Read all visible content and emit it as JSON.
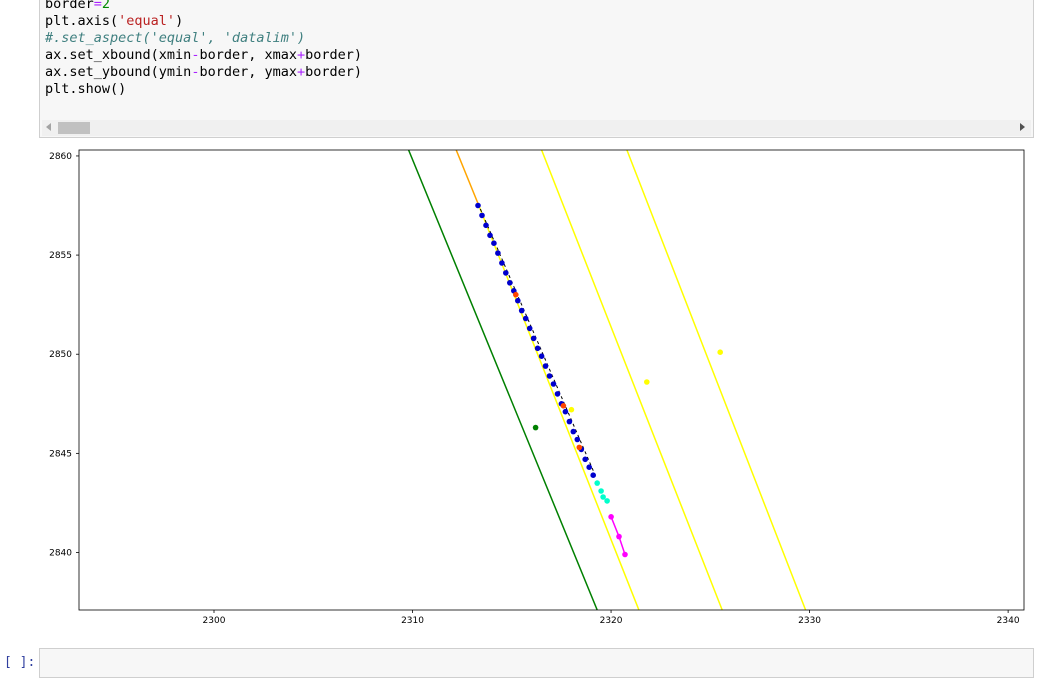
{
  "code_cell": {
    "lines": [
      [
        {
          "t": "border"
        },
        {
          "t": "=",
          "c": "op"
        },
        {
          "t": "2",
          "c": "num"
        }
      ],
      [
        {
          "t": "plt.axis("
        },
        {
          "t": "'equal'",
          "c": "str"
        },
        {
          "t": ")"
        }
      ],
      [
        {
          "t": "#.set_aspect('equal', 'datalim')",
          "c": "com"
        }
      ],
      [
        {
          "t": "ax.set_xbound(xmin"
        },
        {
          "t": "-",
          "c": "op"
        },
        {
          "t": "border, xmax"
        },
        {
          "t": "+",
          "c": "op"
        },
        {
          "t": "border)"
        }
      ],
      [
        {
          "t": "ax.set_ybound(ymin"
        },
        {
          "t": "-",
          "c": "op"
        },
        {
          "t": "border, ymax"
        },
        {
          "t": "+",
          "c": "op"
        },
        {
          "t": "border)"
        }
      ],
      [
        {
          "t": "plt.show()"
        }
      ]
    ]
  },
  "input_prompt": "[ ]:",
  "chart_data": {
    "type": "line",
    "xlim": [
      2293.2,
      2340.8
    ],
    "ylim": [
      2837.1,
      2860.3
    ],
    "xticks": [
      2300,
      2310,
      2320,
      2330,
      2340
    ],
    "yticks": [
      2840,
      2845,
      2850,
      2855,
      2860
    ],
    "grid": false,
    "series": [
      {
        "color": "#008000",
        "kind": "line",
        "points": [
          [
            2309.8,
            2860.3
          ],
          [
            2319.3,
            2837.1
          ]
        ]
      },
      {
        "color": "#008000",
        "kind": "points",
        "points": [
          [
            2316.2,
            2846.3
          ]
        ]
      },
      {
        "color": "#ffa500",
        "kind": "line",
        "points": [
          [
            2312.2,
            2860.3
          ],
          [
            2313.3,
            2857.6
          ]
        ]
      },
      {
        "color": "#ffff00",
        "kind": "line",
        "points": [
          [
            2313.3,
            2857.6
          ],
          [
            2321.4,
            2837.1
          ]
        ]
      },
      {
        "color": "#ffff00",
        "kind": "line",
        "points": [
          [
            2316.5,
            2860.3
          ],
          [
            2325.6,
            2837.1
          ]
        ]
      },
      {
        "color": "#ffff00",
        "kind": "line",
        "points": [
          [
            2320.8,
            2860.3
          ],
          [
            2329.8,
            2837.1
          ]
        ]
      },
      {
        "color": "#ffff00",
        "kind": "points",
        "points": [
          [
            2321.8,
            2848.6
          ],
          [
            2325.5,
            2850.1
          ],
          [
            2318.0,
            2847.2
          ]
        ]
      },
      {
        "color": "#000000",
        "kind": "line",
        "dashed": true,
        "points": [
          [
            2313.3,
            2857.6
          ],
          [
            2319.2,
            2843.9
          ]
        ]
      },
      {
        "color": "#0000cd",
        "kind": "points",
        "points": [
          [
            2313.3,
            2857.5
          ],
          [
            2313.5,
            2857.0
          ],
          [
            2313.7,
            2856.5
          ],
          [
            2313.9,
            2856.0
          ],
          [
            2314.1,
            2855.6
          ],
          [
            2314.3,
            2855.1
          ],
          [
            2314.5,
            2854.6
          ],
          [
            2314.7,
            2854.1
          ],
          [
            2314.9,
            2853.6
          ],
          [
            2315.1,
            2853.2
          ],
          [
            2315.3,
            2852.7
          ],
          [
            2315.5,
            2852.2
          ],
          [
            2315.7,
            2851.8
          ],
          [
            2315.9,
            2851.3
          ],
          [
            2316.1,
            2850.8
          ],
          [
            2316.3,
            2850.3
          ],
          [
            2316.5,
            2849.9
          ],
          [
            2316.7,
            2849.4
          ],
          [
            2316.9,
            2848.9
          ],
          [
            2317.1,
            2848.5
          ],
          [
            2317.3,
            2848.0
          ],
          [
            2317.5,
            2847.5
          ],
          [
            2317.7,
            2847.1
          ],
          [
            2317.9,
            2846.6
          ],
          [
            2318.1,
            2846.1
          ],
          [
            2318.3,
            2845.7
          ],
          [
            2318.5,
            2845.2
          ],
          [
            2318.7,
            2844.7
          ],
          [
            2318.9,
            2844.3
          ],
          [
            2319.1,
            2843.9
          ]
        ]
      },
      {
        "color": "#ff4500",
        "kind": "points",
        "points": [
          [
            2315.2,
            2853.0
          ],
          [
            2317.6,
            2847.4
          ],
          [
            2318.4,
            2845.3
          ]
        ]
      },
      {
        "color": "#00ffcc",
        "kind": "points",
        "points": [
          [
            2319.3,
            2843.5
          ],
          [
            2319.5,
            2843.1
          ],
          [
            2319.6,
            2842.8
          ],
          [
            2319.8,
            2842.6
          ]
        ]
      },
      {
        "color": "#ff00ff",
        "kind": "line",
        "points": [
          [
            2320.0,
            2841.8
          ],
          [
            2320.4,
            2840.8
          ],
          [
            2320.7,
            2839.9
          ]
        ]
      },
      {
        "color": "#ff00ff",
        "kind": "points",
        "points": [
          [
            2320.0,
            2841.8
          ],
          [
            2320.4,
            2840.8
          ],
          [
            2320.7,
            2839.9
          ]
        ]
      }
    ]
  }
}
